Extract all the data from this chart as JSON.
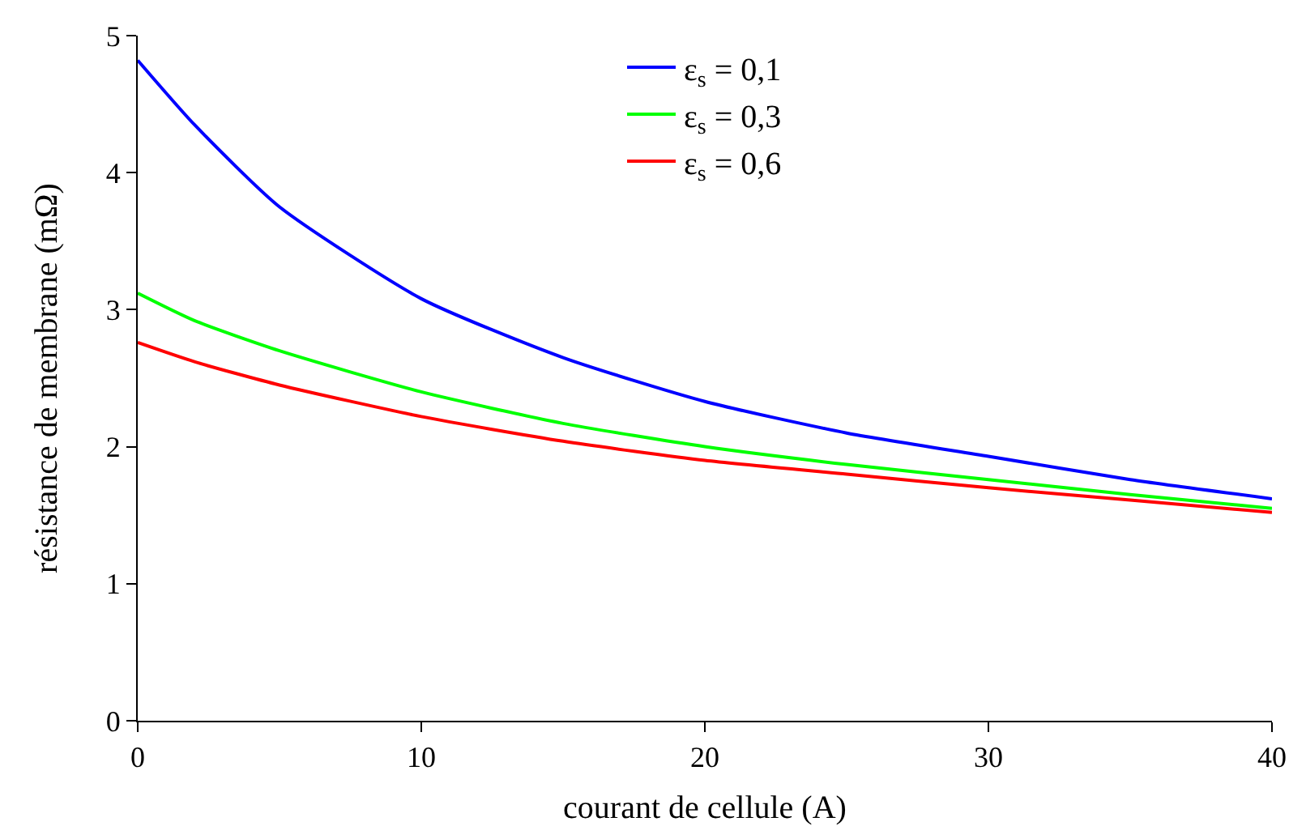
{
  "chart_data": {
    "type": "line",
    "xlabel": "courant de cellule (A)",
    "ylabel": "résistance de membrane (mΩ)",
    "x": [
      0,
      2,
      5,
      10,
      15,
      20,
      25,
      30,
      35,
      40
    ],
    "series": [
      {
        "name": "ε$_{s}$ = 0,1",
        "color": "#0000ff",
        "values": [
          4.82,
          4.35,
          3.75,
          3.08,
          2.65,
          2.33,
          2.1,
          1.93,
          1.76,
          1.62
        ]
      },
      {
        "name": "ε$_{s}$ = 0,3",
        "color": "#00ff00",
        "values": [
          3.12,
          2.92,
          2.7,
          2.4,
          2.17,
          2.0,
          1.87,
          1.76,
          1.65,
          1.55
        ]
      },
      {
        "name": "ε$_{s}$ = 0,6",
        "color": "#ff0000",
        "values": [
          2.76,
          2.62,
          2.45,
          2.22,
          2.04,
          1.9,
          1.8,
          1.7,
          1.61,
          1.52
        ]
      }
    ],
    "xlim": [
      0,
      40
    ],
    "xticks": [
      0,
      10,
      20,
      30,
      40
    ],
    "ylim": [
      0,
      5
    ],
    "yticks": [
      0,
      1,
      2,
      3,
      4,
      5
    ],
    "grid": false,
    "legend": "top",
    "marker": "none",
    "line_style": "solid"
  }
}
